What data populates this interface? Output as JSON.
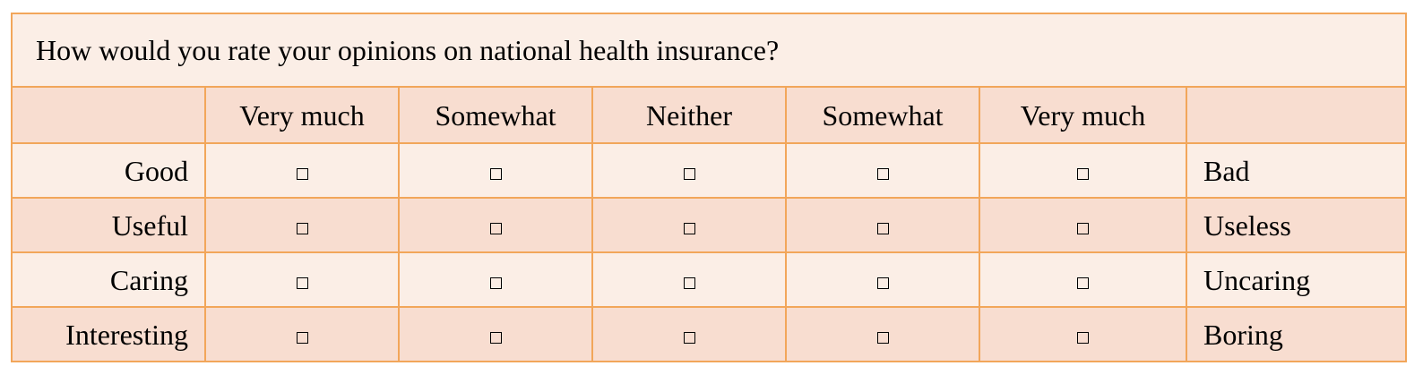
{
  "question": "How would you rate your opinions on national health insurance?",
  "scale_headers": [
    "",
    "Very much",
    "Somewhat",
    "Neither",
    "Somewhat",
    "Very much",
    ""
  ],
  "rows": [
    {
      "left": "Good",
      "right": "Bad"
    },
    {
      "left": "Useful",
      "right": "Useless"
    },
    {
      "left": "Caring",
      "right": "Uncaring"
    },
    {
      "left": "Interesting",
      "right": "Boring"
    }
  ],
  "checkbox_icon": "empty-square-checkbox",
  "colors": {
    "border": "#F2A65A",
    "light_fill": "#FBEEE6",
    "dark_fill": "#F8DDD0"
  }
}
